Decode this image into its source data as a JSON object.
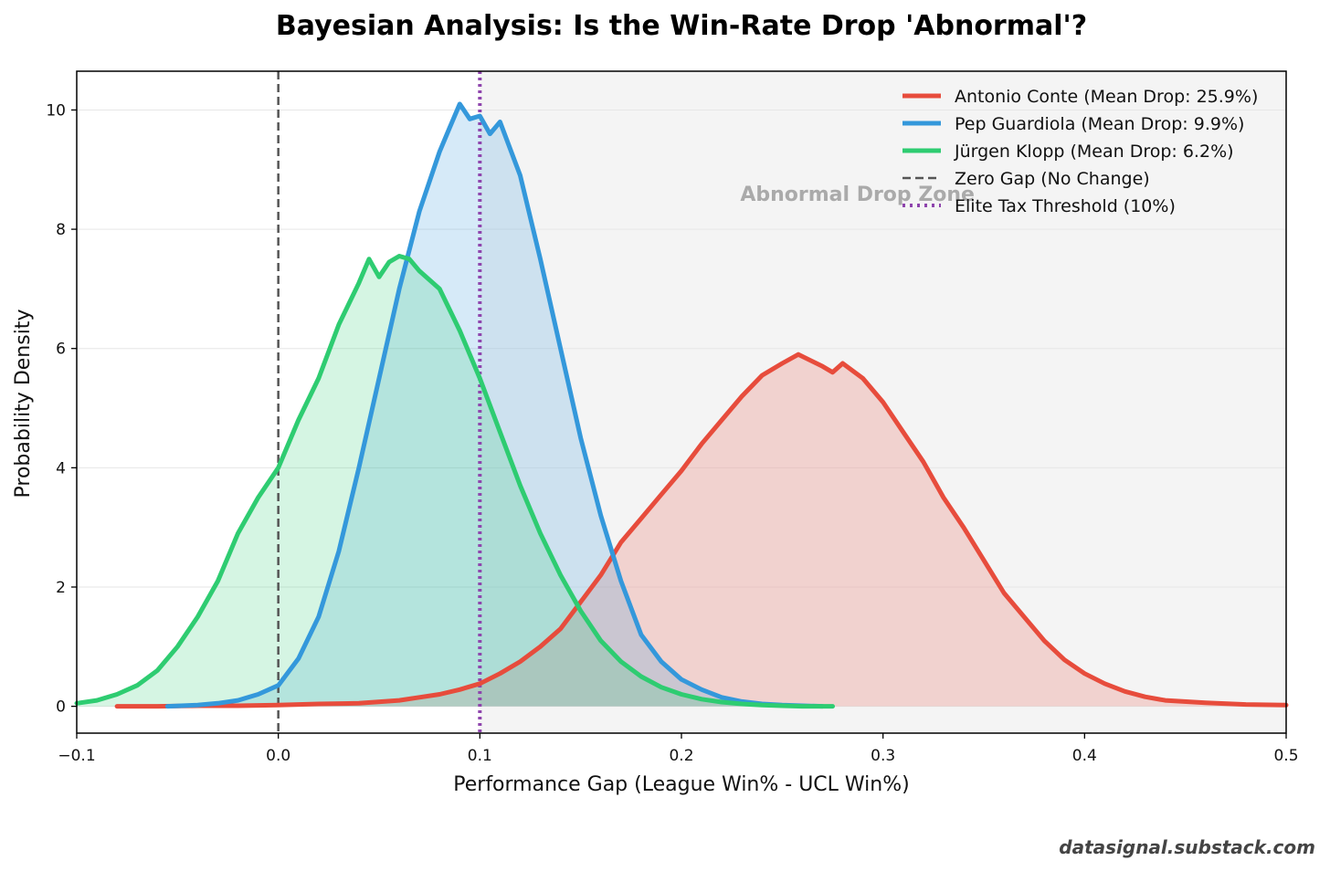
{
  "chart_data": {
    "type": "area",
    "title": "Bayesian Analysis: Is the Win-Rate Drop 'Abnormal'?",
    "xlabel": "Performance Gap (League Win% - UCL Win%)",
    "ylabel": "Probability Density",
    "xlim": [
      -0.1,
      0.5
    ],
    "ylim": [
      -0.45,
      10.65
    ],
    "x_ticks": [
      -0.1,
      0.0,
      0.1,
      0.2,
      0.3,
      0.4,
      0.5
    ],
    "x_tick_labels": [
      "−0.1",
      "0.0",
      "0.1",
      "0.2",
      "0.3",
      "0.4",
      "0.5"
    ],
    "y_ticks": [
      0,
      2,
      4,
      6,
      8,
      10
    ],
    "y_tick_labels": [
      "0",
      "2",
      "4",
      "6",
      "8",
      "10"
    ],
    "grid": "y",
    "legend_position": "top-right",
    "series": [
      {
        "name": "Antonio Conte (Mean Drop: 25.9%)",
        "color": "#e74c3c",
        "x": [
          -0.08,
          -0.06,
          -0.04,
          -0.02,
          0.0,
          0.02,
          0.04,
          0.06,
          0.07,
          0.08,
          0.09,
          0.1,
          0.11,
          0.12,
          0.13,
          0.14,
          0.15,
          0.16,
          0.17,
          0.18,
          0.19,
          0.2,
          0.21,
          0.22,
          0.23,
          0.24,
          0.25,
          0.258,
          0.27,
          0.275,
          0.28,
          0.29,
          0.3,
          0.31,
          0.32,
          0.33,
          0.34,
          0.35,
          0.36,
          0.37,
          0.38,
          0.39,
          0.4,
          0.41,
          0.42,
          0.43,
          0.44,
          0.46,
          0.48,
          0.5
        ],
        "values": [
          0.0,
          0.0,
          0.01,
          0.01,
          0.02,
          0.04,
          0.05,
          0.1,
          0.15,
          0.2,
          0.28,
          0.38,
          0.55,
          0.75,
          1.0,
          1.3,
          1.75,
          2.2,
          2.75,
          3.15,
          3.55,
          3.95,
          4.4,
          4.8,
          5.2,
          5.55,
          5.75,
          5.9,
          5.7,
          5.6,
          5.75,
          5.5,
          5.1,
          4.6,
          4.1,
          3.5,
          3.0,
          2.45,
          1.9,
          1.5,
          1.1,
          0.78,
          0.55,
          0.38,
          0.25,
          0.16,
          0.1,
          0.06,
          0.03,
          0.02
        ]
      },
      {
        "name": "Pep Guardiola (Mean Drop: 9.9%)",
        "color": "#3498db",
        "x": [
          -0.055,
          -0.04,
          -0.03,
          -0.02,
          -0.01,
          0.0,
          0.01,
          0.02,
          0.03,
          0.04,
          0.05,
          0.06,
          0.07,
          0.08,
          0.085,
          0.09,
          0.095,
          0.1,
          0.105,
          0.11,
          0.12,
          0.13,
          0.14,
          0.15,
          0.16,
          0.17,
          0.18,
          0.19,
          0.2,
          0.21,
          0.22,
          0.23,
          0.24,
          0.25,
          0.26,
          0.27
        ],
        "values": [
          0.0,
          0.02,
          0.05,
          0.1,
          0.2,
          0.35,
          0.8,
          1.5,
          2.6,
          4.0,
          5.5,
          7.0,
          8.3,
          9.3,
          9.7,
          10.1,
          9.85,
          9.9,
          9.6,
          9.8,
          8.9,
          7.5,
          6.0,
          4.5,
          3.2,
          2.1,
          1.2,
          0.75,
          0.45,
          0.28,
          0.15,
          0.08,
          0.04,
          0.02,
          0.01,
          0.0
        ]
      },
      {
        "name": "Jürgen Klopp (Mean Drop: 6.2%)",
        "color": "#2ecc71",
        "x": [
          -0.1,
          -0.09,
          -0.08,
          -0.07,
          -0.06,
          -0.05,
          -0.04,
          -0.03,
          -0.02,
          -0.01,
          0.0,
          0.01,
          0.02,
          0.03,
          0.04,
          0.045,
          0.05,
          0.055,
          0.06,
          0.065,
          0.07,
          0.08,
          0.09,
          0.1,
          0.11,
          0.12,
          0.13,
          0.14,
          0.15,
          0.16,
          0.17,
          0.18,
          0.19,
          0.2,
          0.21,
          0.22,
          0.23,
          0.24,
          0.25,
          0.26,
          0.275
        ],
        "values": [
          0.05,
          0.1,
          0.2,
          0.35,
          0.6,
          1.0,
          1.5,
          2.1,
          2.9,
          3.5,
          4.0,
          4.8,
          5.5,
          6.4,
          7.1,
          7.5,
          7.2,
          7.45,
          7.55,
          7.5,
          7.3,
          7.0,
          6.3,
          5.5,
          4.6,
          3.7,
          2.9,
          2.2,
          1.6,
          1.1,
          0.75,
          0.5,
          0.32,
          0.2,
          0.12,
          0.07,
          0.04,
          0.02,
          0.01,
          0.0,
          0.0
        ]
      }
    ],
    "reference_lines": [
      {
        "name": "Zero Gap (No Change)",
        "x": 0.0,
        "style": "dashed",
        "color": "#555555"
      },
      {
        "name": "Elite Tax Threshold (10%)",
        "x": 0.1,
        "style": "dotted",
        "color": "#8e44ad"
      }
    ],
    "shaded_region": {
      "label": "Abnormal Drop Zone",
      "x_from": 0.1,
      "x_to": 0.5,
      "color": "#f4f4f4"
    },
    "annotations": [
      {
        "text": "Abnormal Drop Zone",
        "x": 0.3,
        "y": 8.6
      }
    ]
  },
  "footer": {
    "watermark": "datasignal.substack.com"
  }
}
